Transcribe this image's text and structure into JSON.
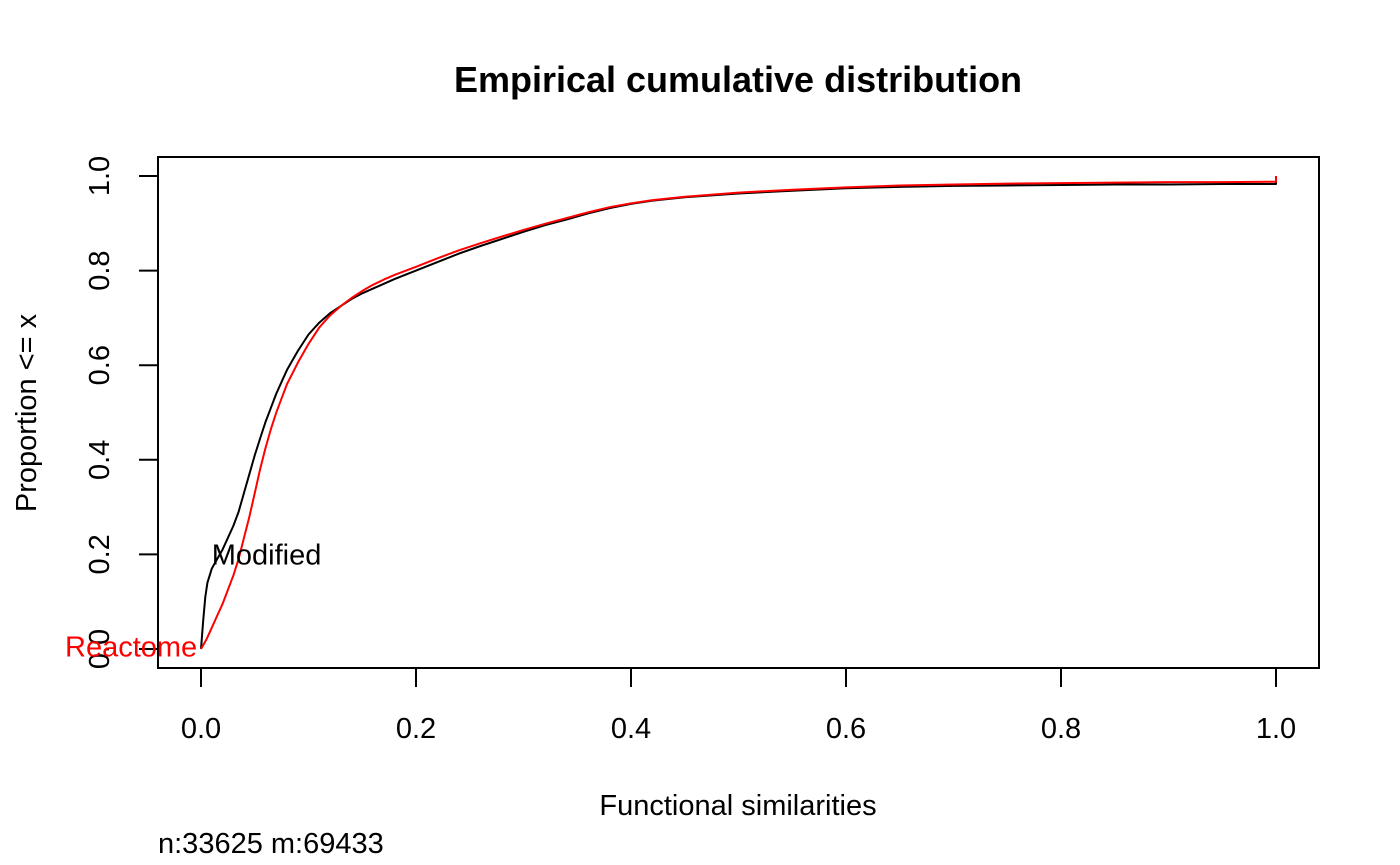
{
  "chart_data": {
    "type": "line",
    "title": "Empirical cumulative distribution",
    "xlabel": "Functional similarities",
    "ylabel": "Proportion <= x",
    "xlim": [
      0.0,
      1.0
    ],
    "ylim": [
      0.0,
      1.0
    ],
    "x_ticks": [
      "0.0",
      "0.2",
      "0.4",
      "0.6",
      "0.8",
      "1.0"
    ],
    "y_ticks": [
      "0.0",
      "0.2",
      "0.4",
      "0.6",
      "0.8",
      "1.0"
    ],
    "grid": false,
    "legend": "none",
    "footnote": "n:33625 m:69433",
    "series": [
      {
        "name": "Modified",
        "color": "#000000",
        "x": [
          0.0,
          0.002,
          0.004,
          0.006,
          0.01,
          0.015,
          0.02,
          0.025,
          0.03,
          0.035,
          0.04,
          0.045,
          0.05,
          0.055,
          0.06,
          0.065,
          0.07,
          0.075,
          0.08,
          0.09,
          0.1,
          0.11,
          0.12,
          0.13,
          0.14,
          0.15,
          0.16,
          0.17,
          0.18,
          0.2,
          0.22,
          0.24,
          0.26,
          0.28,
          0.3,
          0.32,
          0.34,
          0.36,
          0.38,
          0.4,
          0.42,
          0.45,
          0.5,
          0.55,
          0.6,
          0.65,
          0.7,
          0.75,
          0.8,
          0.85,
          0.9,
          0.95,
          1.0
        ],
        "y": [
          0.0,
          0.06,
          0.11,
          0.14,
          0.17,
          0.19,
          0.21,
          0.235,
          0.26,
          0.29,
          0.33,
          0.37,
          0.41,
          0.445,
          0.48,
          0.51,
          0.54,
          0.565,
          0.59,
          0.63,
          0.665,
          0.69,
          0.71,
          0.725,
          0.74,
          0.752,
          0.762,
          0.772,
          0.782,
          0.8,
          0.818,
          0.836,
          0.852,
          0.867,
          0.882,
          0.896,
          0.908,
          0.921,
          0.932,
          0.941,
          0.948,
          0.955,
          0.963,
          0.969,
          0.974,
          0.977,
          0.979,
          0.98,
          0.981,
          0.982,
          0.982,
          0.983,
          0.983
        ]
      },
      {
        "name": "Reactome",
        "color": "#ff0000",
        "x": [
          0.0,
          0.005,
          0.01,
          0.015,
          0.02,
          0.025,
          0.03,
          0.035,
          0.04,
          0.045,
          0.05,
          0.055,
          0.06,
          0.065,
          0.07,
          0.075,
          0.08,
          0.09,
          0.1,
          0.11,
          0.12,
          0.13,
          0.14,
          0.15,
          0.16,
          0.17,
          0.18,
          0.2,
          0.22,
          0.24,
          0.26,
          0.28,
          0.3,
          0.32,
          0.34,
          0.36,
          0.38,
          0.4,
          0.42,
          0.45,
          0.5,
          0.55,
          0.6,
          0.65,
          0.7,
          0.75,
          0.8,
          0.85,
          0.9,
          0.95,
          1.0
        ],
        "y": [
          0.0,
          0.02,
          0.045,
          0.07,
          0.095,
          0.125,
          0.155,
          0.19,
          0.235,
          0.28,
          0.33,
          0.38,
          0.425,
          0.465,
          0.5,
          0.53,
          0.56,
          0.605,
          0.645,
          0.68,
          0.705,
          0.725,
          0.742,
          0.757,
          0.77,
          0.781,
          0.791,
          0.808,
          0.826,
          0.843,
          0.858,
          0.872,
          0.886,
          0.899,
          0.911,
          0.923,
          0.934,
          0.942,
          0.949,
          0.956,
          0.965,
          0.971,
          0.976,
          0.98,
          0.982,
          0.984,
          0.985,
          0.986,
          0.987,
          0.987,
          0.988
        ]
      }
    ],
    "annotations": [
      {
        "text": "Modified",
        "x": 0.01,
        "y": 0.2,
        "color": "#000000"
      },
      {
        "text": "Reactome",
        "x": 0.0,
        "y": 0.005,
        "color": "#ff0000"
      }
    ]
  }
}
